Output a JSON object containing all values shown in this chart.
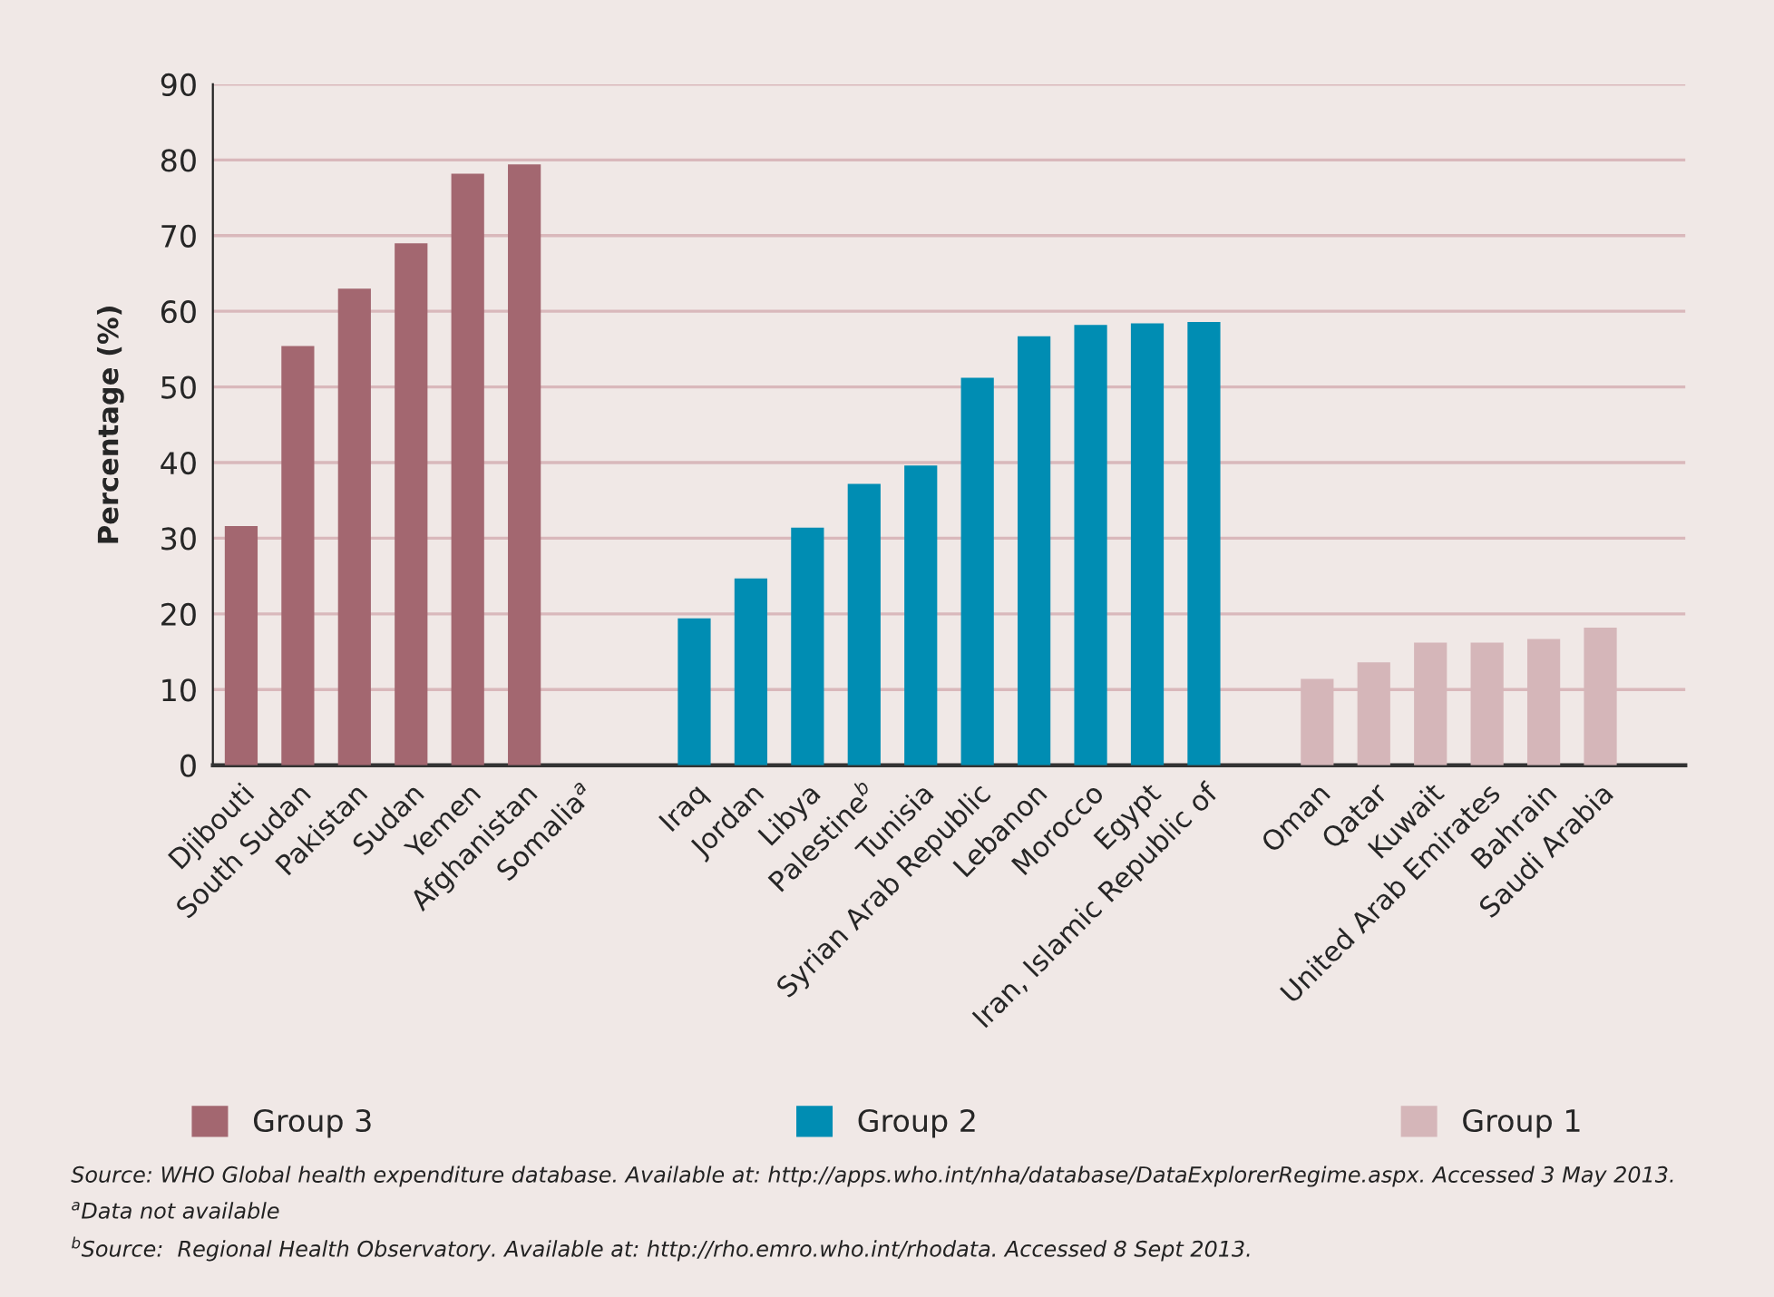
{
  "chart_data": {
    "type": "bar",
    "ylabel": "Percentage (%)",
    "categories": [
      "Djibouti",
      "South Sudan",
      "Pakistan",
      "Sudan",
      "Yemen",
      "Afghanistan",
      "Somalia$^{a}$",
      null,
      "Iraq",
      "Jordan",
      "Libya",
      "Palestine$^{b}$",
      "Tunisia",
      "Syrian Arab Republic",
      "Lebanon",
      "Morocco",
      "Egypt",
      "Iran, Islamic Republic of",
      null,
      "Oman",
      "Qatar",
      "Kuwait",
      "United Arab Emirates",
      "Bahrain",
      "Saudi Arabia"
    ],
    "series": [
      {
        "name": "Group 3",
        "color": "#a36770",
        "values": [
          31.6,
          55.4,
          63.0,
          69.0,
          78.2,
          79.4,
          null,
          null,
          null,
          null,
          null,
          null,
          null,
          null,
          null,
          null,
          null,
          null,
          null,
          null,
          null,
          null,
          null,
          null,
          null
        ]
      },
      {
        "name": "Group 2",
        "color": "#008db3",
        "values": [
          null,
          null,
          null,
          null,
          null,
          null,
          null,
          null,
          19.4,
          24.7,
          31.4,
          37.2,
          39.6,
          51.2,
          56.7,
          58.2,
          58.4,
          58.6,
          null,
          null,
          null,
          null,
          null,
          null,
          null
        ]
      },
      {
        "name": "Group 1",
        "color": "#d5b6b9",
        "values": [
          null,
          null,
          null,
          null,
          null,
          null,
          null,
          null,
          null,
          null,
          null,
          null,
          null,
          null,
          null,
          null,
          null,
          null,
          null,
          11.4,
          13.6,
          16.2,
          16.2,
          16.7,
          18.2
        ]
      }
    ],
    "ylim": [
      0,
      90
    ],
    "yticks": [
      0,
      10,
      20,
      30,
      40,
      50,
      60,
      70,
      80,
      90
    ],
    "grid": "y",
    "legend": "bottom",
    "annotations": [
      "Source: WHO Global health expenditure database. Available at: http://apps.who.int/nha/database/DataExplorerRegime.aspx. Accessed 3 May 2013.",
      "$^{a}$Data not available",
      "$^{b}$Source:  Regional Health Observatory. Available at: http://rho.emro.who.int/rhodata. Accessed 8 Sept 2013."
    ]
  }
}
